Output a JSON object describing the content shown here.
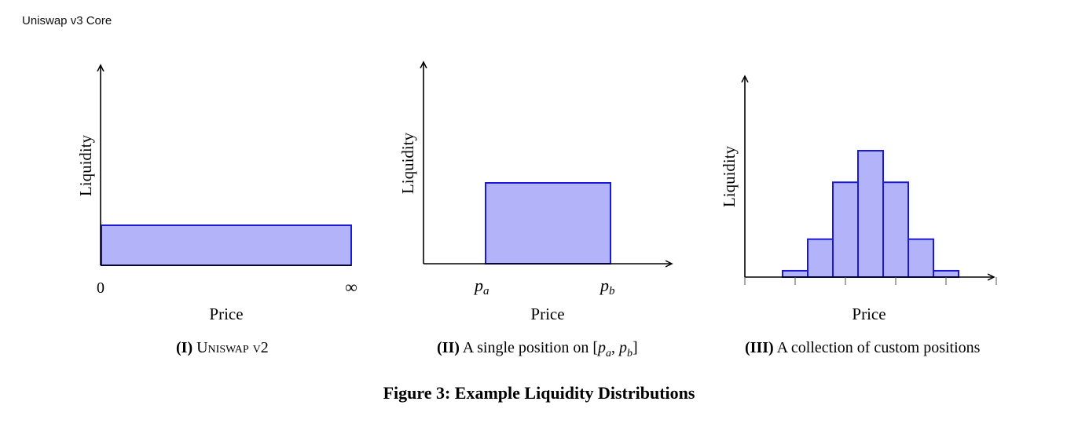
{
  "header": {
    "running_title": "Uniswap v3 Core"
  },
  "panels": [
    {
      "ylabel": "Liquidity",
      "xlabel": "Price",
      "tick_left": "0",
      "tick_right": "∞",
      "caption_num": "(I)",
      "caption_text": "Uniswap v2"
    },
    {
      "ylabel": "Liquidity",
      "xlabel": "Price",
      "tick_left": "p",
      "tick_left_sub": "a",
      "tick_right": "p",
      "tick_right_sub": "b",
      "caption_num": "(II)",
      "caption_text": "A single position on",
      "caption_range": {
        "open": "[",
        "p1": "p",
        "s1": "a",
        "sep": ", ",
        "p2": "p",
        "s2": "b",
        "close": "]"
      }
    },
    {
      "ylabel": "Liquidity",
      "xlabel": "Price",
      "caption_num": "(III)",
      "caption_text": "A collection of custom positions"
    }
  ],
  "figure": {
    "caption": "Figure 3: Example Liquidity Distributions"
  },
  "colors": {
    "fill": "#b3b3fa",
    "stroke": "#1a1ad6",
    "axis": "#000000"
  },
  "chart_data": [
    {
      "type": "area",
      "x": [
        "0",
        "∞"
      ],
      "values": [
        1,
        1
      ],
      "xlabel": "Price",
      "ylabel": "Liquidity"
    },
    {
      "type": "area",
      "x": [
        "p_a",
        "p_b"
      ],
      "values": [
        1,
        1
      ],
      "xlabel": "Price",
      "ylabel": "Liquidity"
    },
    {
      "type": "bar",
      "values": [
        0.05,
        0.3,
        0.75,
        1.0,
        0.75,
        0.3,
        0.05
      ],
      "xlabel": "Price",
      "ylabel": "Liquidity"
    }
  ]
}
